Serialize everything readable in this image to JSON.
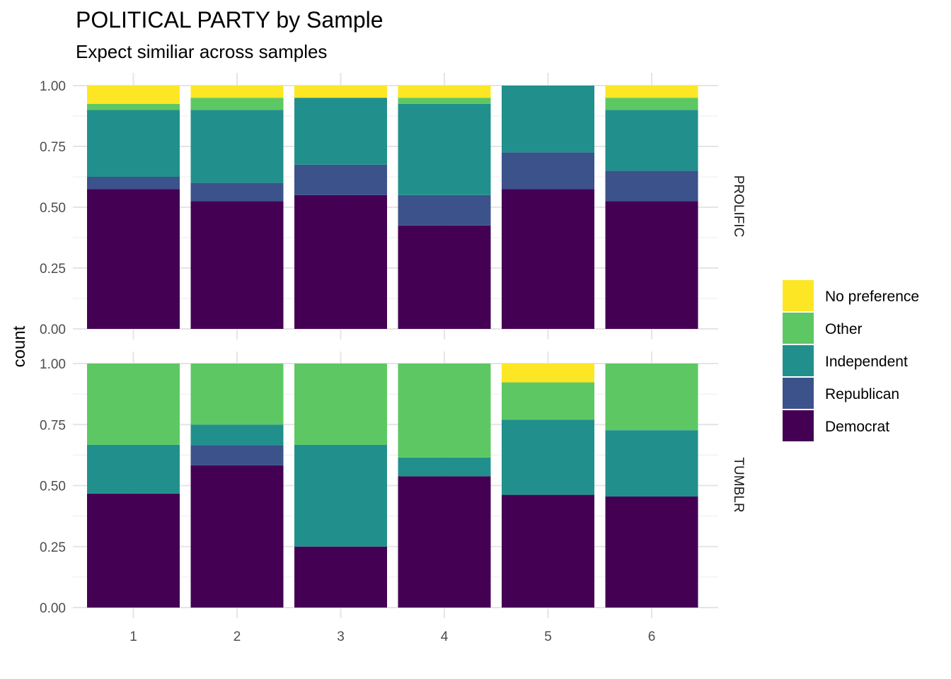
{
  "chart_data": {
    "type": "bar",
    "stacked": true,
    "title": "POLITICAL PARTY by Sample",
    "subtitle": "Expect similiar across samples",
    "ylabel": "count",
    "xlabel": "",
    "ylim": [
      0,
      1
    ],
    "y_ticks": [
      "0.00",
      "0.25",
      "0.50",
      "0.75",
      "1.00"
    ],
    "grid": true,
    "legend_position": "right",
    "categories": [
      "1",
      "2",
      "3",
      "4",
      "5",
      "6"
    ],
    "series_order": [
      "Democrat",
      "Republican",
      "Independent",
      "Other",
      "No preference"
    ],
    "legend": [
      {
        "name": "No preference",
        "color": "#FDE725"
      },
      {
        "name": "Other",
        "color": "#5DC863"
      },
      {
        "name": "Independent",
        "color": "#21908C"
      },
      {
        "name": "Republican",
        "color": "#3B528B"
      },
      {
        "name": "Democrat",
        "color": "#440154"
      }
    ],
    "panels": [
      {
        "facet": "PROLIFIC",
        "series": [
          {
            "name": "Democrat",
            "values": [
              0.575,
              0.525,
              0.55,
              0.425,
              0.575,
              0.525
            ]
          },
          {
            "name": "Republican",
            "values": [
              0.05,
              0.075,
              0.125,
              0.125,
              0.15,
              0.125
            ]
          },
          {
            "name": "Independent",
            "values": [
              0.275,
              0.3,
              0.275,
              0.375,
              0.275,
              0.25
            ]
          },
          {
            "name": "Other",
            "values": [
              0.025,
              0.05,
              0.0,
              0.025,
              0.0,
              0.05
            ]
          },
          {
            "name": "No preference",
            "values": [
              0.075,
              0.05,
              0.05,
              0.05,
              0.0,
              0.05
            ]
          }
        ]
      },
      {
        "facet": "TUMBLR",
        "series": [
          {
            "name": "Democrat",
            "values": [
              0.467,
              0.583,
              0.25,
              0.538,
              0.462,
              0.455
            ]
          },
          {
            "name": "Republican",
            "values": [
              0.0,
              0.083,
              0.0,
              0.0,
              0.0,
              0.0
            ]
          },
          {
            "name": "Independent",
            "values": [
              0.2,
              0.084,
              0.417,
              0.077,
              0.308,
              0.272
            ]
          },
          {
            "name": "Other",
            "values": [
              0.333,
              0.25,
              0.333,
              0.385,
              0.153,
              0.273
            ]
          },
          {
            "name": "No preference",
            "values": [
              0.0,
              0.0,
              0.0,
              0.0,
              0.077,
              0.0
            ]
          }
        ]
      }
    ]
  }
}
